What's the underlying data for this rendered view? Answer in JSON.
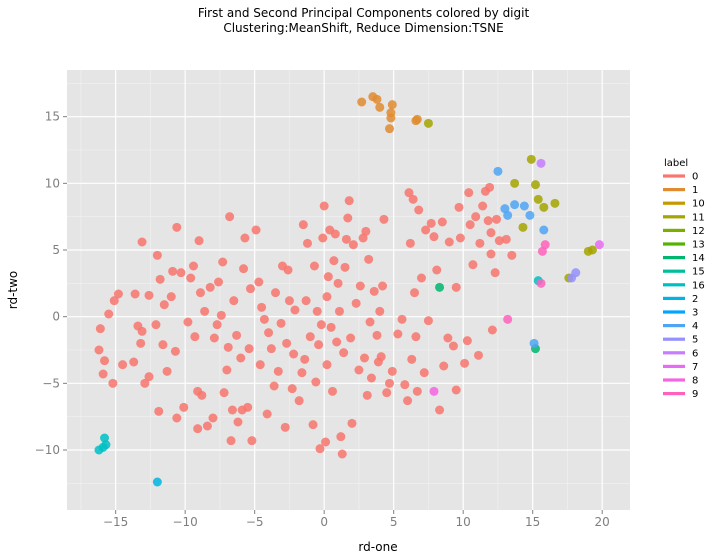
{
  "chart_data": {
    "type": "scatter",
    "title": "First and Second Principal Components colored by digit",
    "subtitle": "Clustering:MeanShift, Reduce Dimension:TSNE",
    "xlabel": "rd-one",
    "ylabel": "rd-two",
    "xlim": [
      -18.5,
      22
    ],
    "ylim": [
      -14.5,
      18.5
    ],
    "x_ticks": [
      -15,
      -10,
      -5,
      0,
      5,
      10,
      15,
      20
    ],
    "y_ticks": [
      -10,
      -5,
      0,
      5,
      10,
      15
    ],
    "x_tick_labels": [
      "−15",
      "−10",
      "−5",
      "0",
      "5",
      "10",
      "15",
      "20"
    ],
    "y_tick_labels": [
      "−10",
      "−5",
      "0",
      "5",
      "10",
      "15"
    ],
    "grid": true,
    "legend_title": "label",
    "legend_position": "right",
    "series": [
      {
        "name": "0",
        "color": "#F8766D",
        "points": [
          [
            -16.2,
            -2.5
          ],
          [
            -16.1,
            -0.9
          ],
          [
            -15.9,
            -4.3
          ],
          [
            -15.8,
            -3.3
          ],
          [
            -15.5,
            0.2
          ],
          [
            -15.2,
            -5.0
          ],
          [
            -15.1,
            1.2
          ],
          [
            -14.8,
            1.7
          ],
          [
            -14.5,
            -3.6
          ],
          [
            -13.7,
            -3.4
          ],
          [
            -13.6,
            1.7
          ],
          [
            -13.4,
            -0.7
          ],
          [
            -13.2,
            -2.0
          ],
          [
            -13.1,
            -1.1
          ],
          [
            -13.1,
            5.6
          ],
          [
            -12.9,
            -5.0
          ],
          [
            -12.6,
            -4.5
          ],
          [
            -12.6,
            1.6
          ],
          [
            -12.1,
            -0.6
          ],
          [
            -12.0,
            4.6
          ],
          [
            -11.9,
            -7.1
          ],
          [
            -11.8,
            2.8
          ],
          [
            -11.6,
            -2.1
          ],
          [
            -11.5,
            0.9
          ],
          [
            -11.3,
            -4.1
          ],
          [
            -11.0,
            1.5
          ],
          [
            -10.9,
            3.4
          ],
          [
            -10.7,
            -2.6
          ],
          [
            -10.6,
            -7.6
          ],
          [
            -10.6,
            6.7
          ],
          [
            -10.3,
            3.3
          ],
          [
            -10.1,
            -6.8
          ],
          [
            -9.8,
            -0.4
          ],
          [
            -9.6,
            2.9
          ],
          [
            -9.4,
            3.8
          ],
          [
            -9.3,
            -1.5
          ],
          [
            -9.1,
            -5.6
          ],
          [
            -9.1,
            -8.4
          ],
          [
            -9.0,
            5.7
          ],
          [
            -8.9,
            1.8
          ],
          [
            -8.8,
            -5.9
          ],
          [
            -8.6,
            0.4
          ],
          [
            -8.4,
            -8.2
          ],
          [
            -8.2,
            2.2
          ],
          [
            -8.0,
            -7.6
          ],
          [
            -7.9,
            -1.6
          ],
          [
            -7.7,
            -0.6
          ],
          [
            -7.6,
            2.6
          ],
          [
            -7.4,
            0.1
          ],
          [
            -7.3,
            4.1
          ],
          [
            -7.2,
            -5.7
          ],
          [
            -7.0,
            -4.0
          ],
          [
            -6.9,
            -2.3
          ],
          [
            -6.8,
            7.5
          ],
          [
            -6.7,
            -9.3
          ],
          [
            -6.6,
            -7.0
          ],
          [
            -6.5,
            1.2
          ],
          [
            -6.3,
            -1.4
          ],
          [
            -6.2,
            -7.9
          ],
          [
            -6.0,
            -3.1
          ],
          [
            -5.9,
            -7.0
          ],
          [
            -5.8,
            3.6
          ],
          [
            -5.7,
            5.9
          ],
          [
            -5.5,
            -6.8
          ],
          [
            -5.4,
            -2.4
          ],
          [
            -5.3,
            2.1
          ],
          [
            -5.2,
            -9.3
          ],
          [
            -4.9,
            6.5
          ],
          [
            -4.7,
            2.6
          ],
          [
            -4.6,
            -3.6
          ],
          [
            -4.5,
            0.7
          ],
          [
            -4.3,
            -0.2
          ],
          [
            -4.1,
            -7.3
          ],
          [
            -4.0,
            -1.2
          ],
          [
            -3.8,
            -2.4
          ],
          [
            -3.6,
            -5.2
          ],
          [
            -3.5,
            1.8
          ],
          [
            -3.3,
            -4.1
          ],
          [
            -3.1,
            -0.5
          ],
          [
            -3.0,
            3.8
          ],
          [
            -2.8,
            -8.3
          ],
          [
            -2.7,
            -2.0
          ],
          [
            -2.6,
            3.5
          ],
          [
            -2.5,
            1.2
          ],
          [
            -2.3,
            -5.4
          ],
          [
            -2.2,
            -2.8
          ],
          [
            -2.1,
            0.5
          ],
          [
            -1.8,
            -6.3
          ],
          [
            -1.6,
            -4.2
          ],
          [
            -1.5,
            6.9
          ],
          [
            -1.4,
            -3.2
          ],
          [
            -1.3,
            1.2
          ],
          [
            -1.2,
            5.5
          ],
          [
            -1.0,
            -1.5
          ],
          [
            -0.8,
            -8.1
          ],
          [
            -0.7,
            3.8
          ],
          [
            -0.6,
            -4.9
          ],
          [
            -0.5,
            0.4
          ],
          [
            -0.4,
            -2.1
          ],
          [
            -0.3,
            -9.9
          ],
          [
            -0.2,
            -0.6
          ],
          [
            -0.1,
            5.9
          ],
          [
            0.0,
            8.3
          ],
          [
            0.1,
            -9.4
          ],
          [
            0.2,
            -3.6
          ],
          [
            0.2,
            1.5
          ],
          [
            0.3,
            3.0
          ],
          [
            0.4,
            6.5
          ],
          [
            0.5,
            -0.8
          ],
          [
            0.6,
            -5.6
          ],
          [
            0.7,
            4.2
          ],
          [
            0.8,
            6.2
          ],
          [
            0.9,
            -1.9
          ],
          [
            1.0,
            2.5
          ],
          [
            1.1,
            0.4
          ],
          [
            1.2,
            -9.0
          ],
          [
            1.3,
            -10.3
          ],
          [
            1.4,
            -2.7
          ],
          [
            1.5,
            3.7
          ],
          [
            1.6,
            5.8
          ],
          [
            1.7,
            7.4
          ],
          [
            1.8,
            8.7
          ],
          [
            1.9,
            -1.6
          ],
          [
            2.0,
            -8.0
          ],
          [
            2.1,
            5.4
          ],
          [
            2.3,
            1.0
          ],
          [
            2.5,
            -4.0
          ],
          [
            2.6,
            2.3
          ],
          [
            2.8,
            5.9
          ],
          [
            2.9,
            -3.1
          ],
          [
            3.0,
            6.4
          ],
          [
            3.1,
            -5.9
          ],
          [
            3.2,
            4.3
          ],
          [
            3.3,
            -0.4
          ],
          [
            3.4,
            -4.6
          ],
          [
            3.6,
            1.9
          ],
          [
            3.8,
            -1.4
          ],
          [
            3.9,
            -3.4
          ],
          [
            4.0,
            0.4
          ],
          [
            4.1,
            -3.0
          ],
          [
            4.2,
            2.3
          ],
          [
            4.3,
            7.3
          ],
          [
            4.5,
            -5.7
          ],
          [
            4.7,
            -5.0
          ],
          [
            4.9,
            -4.1
          ],
          [
            5.3,
            -1.3
          ],
          [
            5.6,
            -0.2
          ],
          [
            5.8,
            -5.1
          ],
          [
            6.0,
            -6.3
          ],
          [
            6.1,
            9.3
          ],
          [
            6.2,
            5.5
          ],
          [
            6.3,
            -3.2
          ],
          [
            6.4,
            8.8
          ],
          [
            6.5,
            1.8
          ],
          [
            6.6,
            -1.5
          ],
          [
            6.7,
            -5.6
          ],
          [
            6.8,
            8.0
          ],
          [
            7.0,
            2.9
          ],
          [
            7.2,
            -4.2
          ],
          [
            7.3,
            6.5
          ],
          [
            7.5,
            -0.3
          ],
          [
            7.7,
            7.0
          ],
          [
            7.9,
            6.0
          ],
          [
            8.1,
            3.5
          ],
          [
            8.3,
            -7.0
          ],
          [
            8.5,
            7.1
          ],
          [
            8.6,
            -3.7
          ],
          [
            8.9,
            -1.6
          ],
          [
            9.0,
            5.6
          ],
          [
            9.3,
            -2.2
          ],
          [
            9.5,
            -5.5
          ],
          [
            9.5,
            2.2
          ],
          [
            9.7,
            8.2
          ],
          [
            9.8,
            5.9
          ],
          [
            10.1,
            -3.5
          ],
          [
            10.3,
            -1.8
          ],
          [
            10.4,
            9.3
          ],
          [
            10.5,
            6.9
          ],
          [
            10.7,
            3.9
          ],
          [
            10.9,
            7.5
          ],
          [
            11.1,
            -2.9
          ],
          [
            11.2,
            5.5
          ],
          [
            11.4,
            8.3
          ],
          [
            11.6,
            9.4
          ],
          [
            11.8,
            7.2
          ],
          [
            11.9,
            9.7
          ],
          [
            12.0,
            4.7
          ],
          [
            12.0,
            6.3
          ],
          [
            12.1,
            -1.0
          ],
          [
            12.3,
            3.3
          ],
          [
            12.4,
            7.3
          ],
          [
            12.6,
            5.7
          ],
          [
            13.1,
            5.8
          ],
          [
            13.5,
            4.6
          ]
        ]
      },
      {
        "name": "1",
        "color": "#E08B30",
        "points": [
          [
            2.7,
            16.1
          ],
          [
            3.5,
            16.5
          ],
          [
            3.8,
            16.3
          ],
          [
            4.0,
            15.7
          ],
          [
            4.8,
            15.3
          ],
          [
            4.9,
            15.9
          ],
          [
            4.8,
            14.9
          ],
          [
            4.7,
            14.1
          ],
          [
            6.6,
            14.7
          ],
          [
            6.7,
            14.8
          ]
        ]
      },
      {
        "name": "10",
        "color": "#C49A00",
        "points": []
      },
      {
        "name": "11",
        "color": "#A3A500",
        "points": [
          [
            7.5,
            14.5
          ],
          [
            13.7,
            10.0
          ],
          [
            14.3,
            6.7
          ],
          [
            14.9,
            11.8
          ],
          [
            15.2,
            9.9
          ],
          [
            15.4,
            8.8
          ],
          [
            15.8,
            8.2
          ],
          [
            16.6,
            8.5
          ],
          [
            19.0,
            4.9
          ],
          [
            19.3,
            5.0
          ],
          [
            17.6,
            2.9
          ]
        ]
      },
      {
        "name": "12",
        "color": "#7CAE00",
        "points": []
      },
      {
        "name": "13",
        "color": "#53B400",
        "points": []
      },
      {
        "name": "14",
        "color": "#00B66E",
        "points": [
          [
            8.3,
            2.2
          ],
          [
            15.2,
            -2.4
          ]
        ]
      },
      {
        "name": "15",
        "color": "#00BE9C",
        "points": []
      },
      {
        "name": "16",
        "color": "#00BFC4",
        "points": [
          [
            -15.8,
            -9.1
          ],
          [
            -15.7,
            -9.6
          ],
          [
            -15.9,
            -9.8
          ],
          [
            -16.2,
            -10.0
          ],
          [
            15.4,
            2.7
          ]
        ]
      },
      {
        "name": "2",
        "color": "#00B5E2",
        "points": [
          [
            -12.0,
            -12.4
          ]
        ]
      },
      {
        "name": "3",
        "color": "#00A5FF",
        "points": []
      },
      {
        "name": "4",
        "color": "#4FA4F4",
        "points": [
          [
            12.5,
            10.9
          ],
          [
            13.0,
            8.1
          ],
          [
            13.2,
            7.6
          ],
          [
            13.7,
            8.4
          ],
          [
            14.4,
            8.3
          ],
          [
            14.8,
            7.6
          ],
          [
            15.8,
            6.5
          ],
          [
            15.1,
            -2.0
          ]
        ]
      },
      {
        "name": "5",
        "color": "#9590FF",
        "points": [
          [
            18.1,
            3.3
          ],
          [
            17.8,
            2.9
          ]
        ]
      },
      {
        "name": "6",
        "color": "#C77CFF",
        "points": [
          [
            15.6,
            11.5
          ]
        ]
      },
      {
        "name": "7",
        "color": "#E76BF3",
        "points": [
          [
            19.8,
            5.4
          ]
        ]
      },
      {
        "name": "8",
        "color": "#F564E3",
        "points": [
          [
            7.9,
            -5.6
          ]
        ]
      },
      {
        "name": "9",
        "color": "#FF62BC",
        "points": [
          [
            13.2,
            -0.2
          ],
          [
            15.7,
            4.9
          ],
          [
            15.9,
            5.4
          ],
          [
            15.6,
            2.5
          ]
        ]
      }
    ]
  }
}
